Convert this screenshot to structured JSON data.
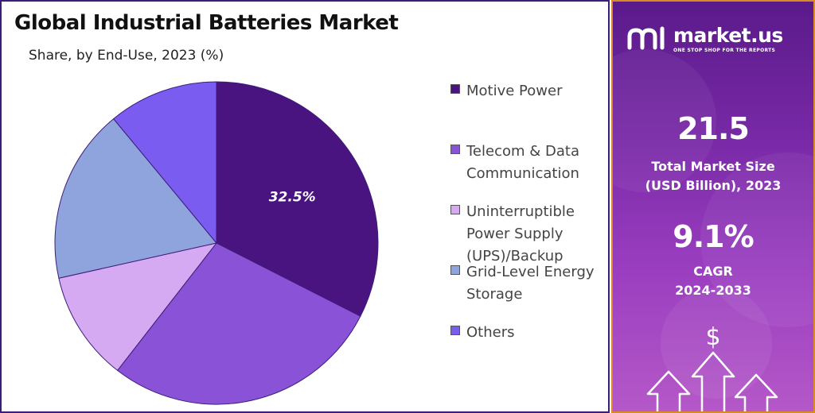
{
  "chart_data": {
    "type": "pie",
    "title": "Global Industrial Batteries Market",
    "subtitle": "Share, by End-Use, 2023 (%)",
    "categories": [
      "Motive Power",
      "Telecom & Data\nCommunication",
      "Uninterruptible\nPower Supply\n(UPS)/Backup",
      "Grid-Level Energy\nStorage",
      "Others"
    ],
    "values": [
      32.5,
      28.0,
      11.0,
      17.5,
      11.0
    ],
    "colors": [
      "#4a1480",
      "#8a52d6",
      "#d5aaf2",
      "#8fa3dc",
      "#7b5cf0"
    ],
    "data_labels": [
      "32.5%",
      "",
      "",
      "",
      ""
    ],
    "legend_position": "right"
  },
  "brand": {
    "name": "market.us",
    "tagline": "ONE STOP SHOP FOR THE REPORTS"
  },
  "stats": {
    "market_size_value": "21.5",
    "market_size_label": "Total Market Size\n(USD Billion), 2023",
    "cagr_value": "9.1%",
    "cagr_label": "CAGR\n2024-2033"
  },
  "decor": {
    "dollar_icon": "dollar-sign-icon",
    "arrow_icon": "up-arrow-outline-icon"
  }
}
